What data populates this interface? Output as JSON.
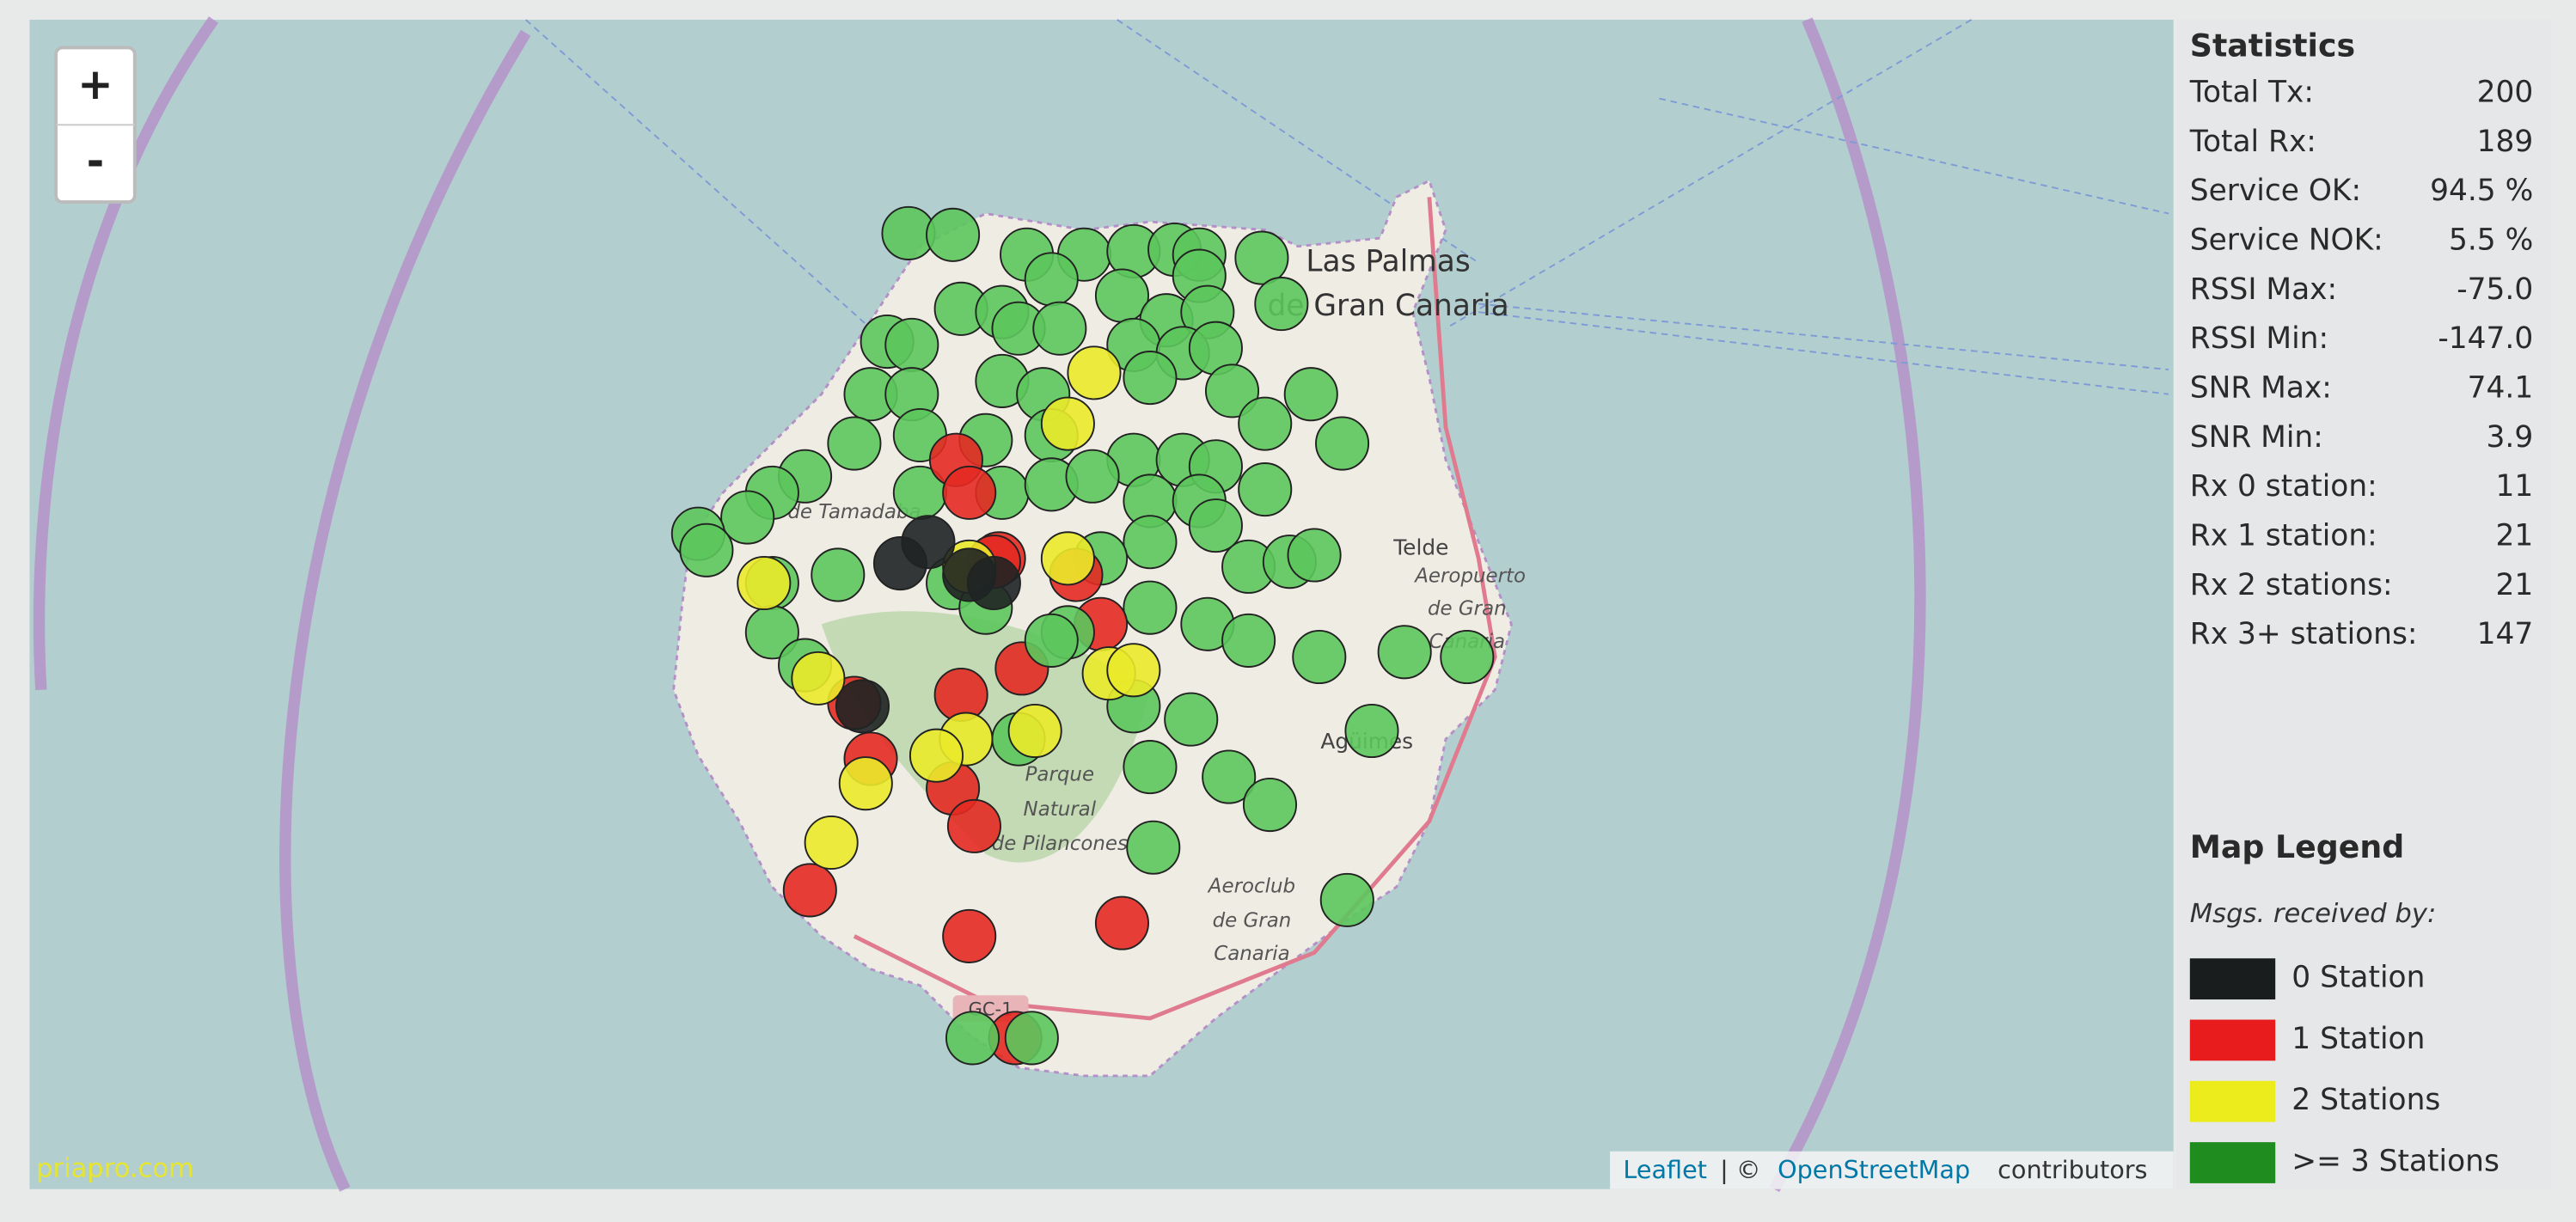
{
  "map": {
    "zoom": {
      "in": "+",
      "out": "-"
    },
    "labels": {
      "city": [
        "Las Palmas",
        "de Gran Canaria"
      ],
      "telde": "Telde",
      "airport": [
        "Aeropuerto",
        "de Gran",
        "Canaria"
      ],
      "park": [
        "Parque",
        "Natural",
        "de Pilancones"
      ],
      "aeroclub": [
        "Aeroclub",
        "de Gran",
        "Canaria"
      ],
      "aguimes": "Agüimes",
      "tamadaba": "de Tamadaba",
      "road": "GC-1"
    },
    "attribution": {
      "leaflet": "Leaflet",
      "sep": "| ©",
      "osm": "OpenStreetMap",
      "rest": "contributors"
    },
    "watermark": "priapro.com"
  },
  "statistics": {
    "title": "Statistics",
    "rows": [
      {
        "label": "Total Tx:",
        "value": "200"
      },
      {
        "label": "Total Rx:",
        "value": "189"
      },
      {
        "label": "Service OK:",
        "value": "94.5 %"
      },
      {
        "label": "Service NOK:",
        "value": "5.5 %"
      },
      {
        "label": "RSSI Max:",
        "value": "-75.0"
      },
      {
        "label": "RSSI Min:",
        "value": "-147.0"
      },
      {
        "label": "SNR Max:",
        "value": "74.1"
      },
      {
        "label": "SNR Min:",
        "value": "3.9"
      },
      {
        "label": "Rx 0 station:",
        "value": "11"
      },
      {
        "label": "Rx 1 station:",
        "value": "21"
      },
      {
        "label": "Rx 2 stations:",
        "value": "21"
      },
      {
        "label": "Rx 3+ stations:",
        "value": "147"
      }
    ]
  },
  "legend": {
    "title": "Map Legend",
    "subtitle": "Msgs. received by:",
    "items": [
      {
        "label": "0 Station",
        "color": "#1a1d1e",
        "marker_color": "#1f2324"
      },
      {
        "label": "1 Station",
        "color": "#e81c1c",
        "marker_color": "#e42a22"
      },
      {
        "label": "2 Stations",
        "color": "#ecec1c",
        "marker_color": "#eaea2a"
      },
      {
        "label": ">= 3 Stations",
        "color": "#1e8c1e",
        "marker_color": "#5cc65c"
      }
    ]
  }
}
